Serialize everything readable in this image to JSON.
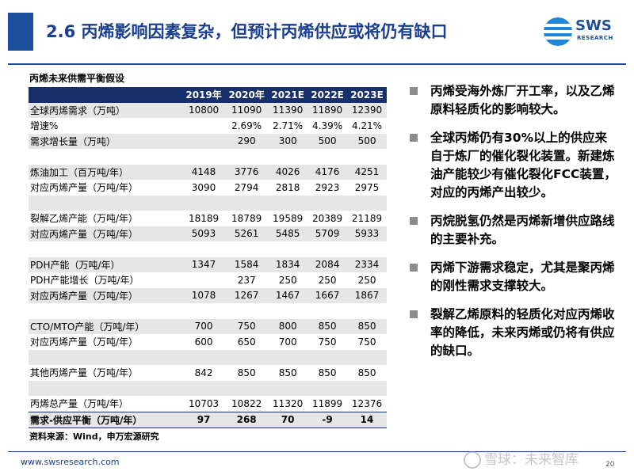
{
  "slide": {
    "title": "2.6 丙烯影响因素复杂，但预计丙烯供应或将仍有缺口",
    "logo_text": "SWS",
    "logo_sub": "RESEARCH"
  },
  "table": {
    "title": "丙烯未来供需平衡假设",
    "headers": [
      "",
      "2019年",
      "2020年",
      "2021E",
      "2022E",
      "2023E"
    ],
    "rows": [
      {
        "label": "全球丙烯需求（万吨）",
        "values": [
          "10800",
          "11090",
          "11390",
          "11890",
          "12390"
        ]
      },
      {
        "label": "增速%",
        "values": [
          "",
          "2.69%",
          "2.71%",
          "4.39%",
          "4.21%"
        ]
      },
      {
        "label": "需求增长量（万吨）",
        "values": [
          "",
          "290",
          "300",
          "500",
          "500"
        ]
      },
      {
        "label": "",
        "values": [
          "",
          "",
          "",
          "",
          ""
        ]
      },
      {
        "label": "炼油加工（百万吨/年）",
        "values": [
          "4148",
          "3776",
          "4026",
          "4176",
          "4251"
        ]
      },
      {
        "label": "对应丙烯产量（万吨/年）",
        "values": [
          "3090",
          "2794",
          "2818",
          "2923",
          "2975"
        ]
      },
      {
        "label": "",
        "values": [
          "",
          "",
          "",
          "",
          ""
        ]
      },
      {
        "label": "裂解乙烯产能（万吨/年）",
        "values": [
          "18189",
          "18789",
          "19589",
          "20389",
          "21189"
        ]
      },
      {
        "label": "对应丙烯产量（万吨/年）",
        "values": [
          "5093",
          "5261",
          "5485",
          "5709",
          "5933"
        ]
      },
      {
        "label": "",
        "values": [
          "",
          "",
          "",
          "",
          ""
        ]
      },
      {
        "label": "PDH产能（万吨/年）",
        "values": [
          "1347",
          "1584",
          "1834",
          "2084",
          "2334"
        ]
      },
      {
        "label": "PDH产能增长（万吨/年）",
        "values": [
          "",
          "237",
          "250",
          "250",
          "250"
        ]
      },
      {
        "label": "对应丙烯产量（万吨/年）",
        "values": [
          "1078",
          "1267",
          "1467",
          "1667",
          "1867"
        ]
      },
      {
        "label": "",
        "values": [
          "",
          "",
          "",
          "",
          ""
        ]
      },
      {
        "label": "CTO/MTO产能（万吨/年）",
        "values": [
          "700",
          "750",
          "800",
          "850",
          "850"
        ]
      },
      {
        "label": "对应丙烯产量（万吨/年）",
        "values": [
          "600",
          "650",
          "700",
          "750",
          "750"
        ]
      },
      {
        "label": "",
        "values": [
          "",
          "",
          "",
          "",
          ""
        ]
      },
      {
        "label": "其他丙烯产量（万吨/年）",
        "values": [
          "842",
          "850",
          "850",
          "850",
          "850"
        ]
      },
      {
        "label": "",
        "values": [
          "",
          "",
          "",
          "",
          ""
        ]
      },
      {
        "label": "丙烯总产量（万吨/年）",
        "values": [
          "10703",
          "10822",
          "11320",
          "11899",
          "12376"
        ]
      },
      {
        "label": "需求-供应平衡（万吨/年）",
        "values": [
          "97",
          "268",
          "70",
          "-9",
          "14"
        ]
      }
    ],
    "source": "资料来源：Wind，申万宏源研究"
  },
  "bullets": [
    "丙烯受海外炼厂开工率，以及乙烯原料轻质化的影响较大。",
    "全球丙烯仍有30%以上的供应来自于炼厂的催化裂化装置。新建炼油产能较少有催化裂化FCC装置，对应的丙烯产出较少。",
    "丙烷脱氢仍然是丙烯新增供应路线的主要补充。",
    "丙烯下游需求稳定，尤其是聚丙烯的刚性需求支撑较大。",
    "裂解乙烯原料的轻质化对应丙烯收率的降低，未来丙烯或仍将有供应的缺口。"
  ],
  "footer": {
    "url": "www.swsresearch.com",
    "page": "20",
    "watermark": "雪球：未来智库"
  },
  "colors": {
    "brand_blue": "#1b4f9c",
    "header_navy": "#17306a",
    "row_gray": "#e6e6e6"
  }
}
